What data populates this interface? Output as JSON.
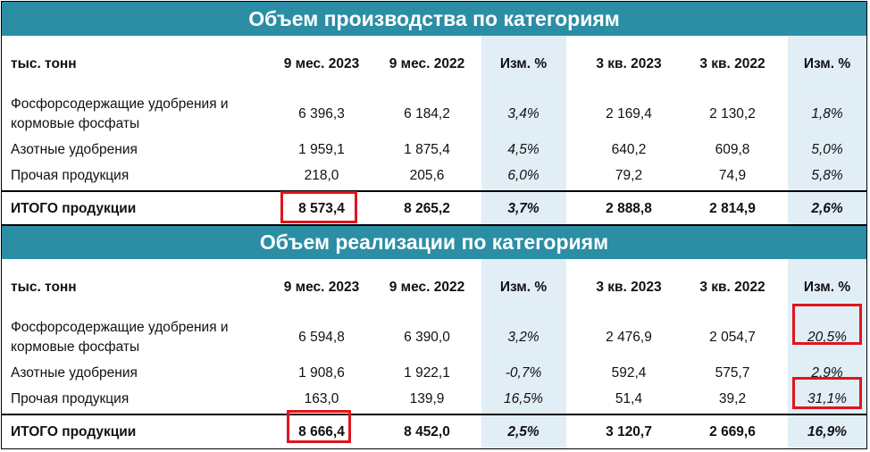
{
  "production": {
    "title": "Объем производства по категориям",
    "headers": [
      "тыс. тонн",
      "9 мес. 2023",
      "9 мес. 2022",
      "Изм. %",
      "3 кв. 2023",
      "3 кв. 2022",
      "Изм. %"
    ],
    "rows": [
      [
        "Фосфорсодержащие удобрения и кормовые фосфаты",
        "6 396,3",
        "6 184,2",
        "3,4%",
        "2 169,4",
        "2 130,2",
        "1,8%"
      ],
      [
        "Азотные удобрения",
        "1 959,1",
        "1 875,4",
        "4,5%",
        "640,2",
        "609,8",
        "5,0%"
      ],
      [
        "Прочая продукция",
        "218,0",
        "205,6",
        "6,0%",
        "79,2",
        "74,9",
        "5,8%"
      ]
    ],
    "total": [
      "ИТОГО продукции",
      "8 573,4",
      "8 265,2",
      "3,7%",
      "2 888,8",
      "2 814,9",
      "2,6%"
    ]
  },
  "sales": {
    "title": "Объем реализации по категориям",
    "headers": [
      "тыс. тонн",
      "9 мес. 2023",
      "9 мес. 2022",
      "Изм. %",
      "3 кв. 2023",
      "3 кв. 2022",
      "Изм. %"
    ],
    "rows": [
      [
        "Фосфорсодержащие удобрения и кормовые фосфаты",
        "6 594,8",
        "6 390,0",
        "3,2%",
        "2 476,9",
        "2 054,7",
        "20,5%"
      ],
      [
        "Азотные удобрения",
        "1 908,6",
        "1 922,1",
        "-0,7%",
        "592,4",
        "575,7",
        "2,9%"
      ],
      [
        "Прочая продукция",
        "163,0",
        "139,9",
        "16,5%",
        "51,4",
        "39,2",
        "31,1%"
      ]
    ],
    "total": [
      "ИТОГО продукции",
      "8 666,4",
      "8 452,0",
      "2,5%",
      "3 120,7",
      "2 669,6",
      "16,9%"
    ]
  },
  "colors": {
    "title_bg": "#2b8ea5",
    "pct_col_bg": "#e1eef6",
    "highlight": "#e0151c"
  }
}
